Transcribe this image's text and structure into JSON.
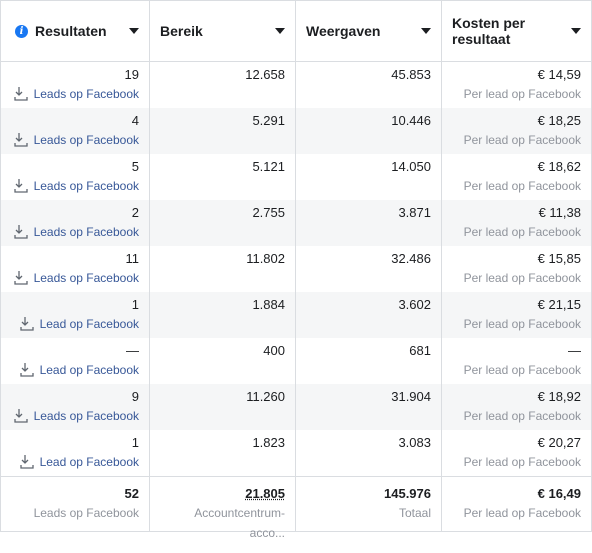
{
  "columns": [
    {
      "label": "Resultaten"
    },
    {
      "label": "Bereik"
    },
    {
      "label": "Weergaven"
    },
    {
      "label": "Kosten per resultaat"
    }
  ],
  "rows": [
    {
      "results": "19",
      "result_type": "Leads op Facebook",
      "reach": "12.658",
      "impressions": "45.853",
      "cost": "€ 14,59",
      "cost_type": "Per lead op Facebook"
    },
    {
      "results": "4",
      "result_type": "Leads op Facebook",
      "reach": "5.291",
      "impressions": "10.446",
      "cost": "€ 18,25",
      "cost_type": "Per lead op Facebook"
    },
    {
      "results": "5",
      "result_type": "Leads op Facebook",
      "reach": "5.121",
      "impressions": "14.050",
      "cost": "€ 18,62",
      "cost_type": "Per lead op Facebook"
    },
    {
      "results": "2",
      "result_type": "Leads op Facebook",
      "reach": "2.755",
      "impressions": "3.871",
      "cost": "€ 11,38",
      "cost_type": "Per lead op Facebook"
    },
    {
      "results": "11",
      "result_type": "Leads op Facebook",
      "reach": "11.802",
      "impressions": "32.486",
      "cost": "€ 15,85",
      "cost_type": "Per lead op Facebook"
    },
    {
      "results": "1",
      "result_type": "Lead op Facebook",
      "reach": "1.884",
      "impressions": "3.602",
      "cost": "€ 21,15",
      "cost_type": "Per lead op Facebook"
    },
    {
      "results": "—",
      "result_type": "Lead op Facebook",
      "reach": "400",
      "impressions": "681",
      "cost": "—",
      "cost_type": "Per lead op Facebook"
    },
    {
      "results": "9",
      "result_type": "Leads op Facebook",
      "reach": "11.260",
      "impressions": "31.904",
      "cost": "€ 18,92",
      "cost_type": "Per lead op Facebook"
    },
    {
      "results": "1",
      "result_type": "Lead op Facebook",
      "reach": "1.823",
      "impressions": "3.083",
      "cost": "€ 20,27",
      "cost_type": "Per lead op Facebook"
    }
  ],
  "total": {
    "results": "52",
    "results_label": "Leads op Facebook",
    "reach": "21.805",
    "reach_label": "Accountcentrum-acco...",
    "impressions": "145.976",
    "impressions_label": "Totaal",
    "cost": "€ 16,49",
    "cost_label": "Per lead op Facebook"
  },
  "icons": {
    "info": "info-icon",
    "sort": "caret-down-icon",
    "result": "download-icon"
  },
  "colors": {
    "info": "#1877f2",
    "link": "#385898",
    "muted": "#90949c",
    "stripe": "#f5f6f7"
  }
}
